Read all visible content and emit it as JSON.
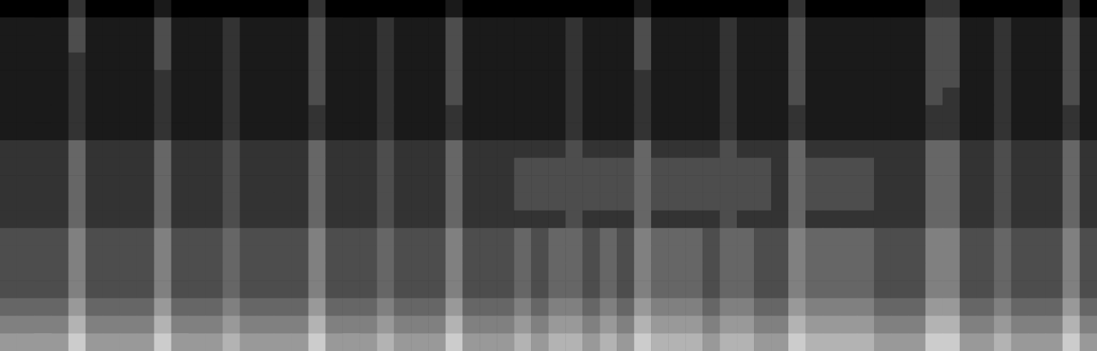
{
  "chart_data": {
    "type": "heatmap",
    "tick_labels": false,
    "grid": false,
    "zlim": [
      0,
      10
    ],
    "cells": [
      [
        0,
        0,
        0,
        0,
        2,
        0,
        0,
        0,
        0,
        1,
        0,
        0,
        0,
        0,
        0,
        0,
        0,
        0,
        2,
        0,
        0,
        0,
        0,
        0,
        0,
        0,
        1,
        0,
        0,
        0,
        0,
        0,
        0,
        0,
        0,
        0,
        0,
        1,
        0,
        0,
        0,
        0,
        0,
        0,
        0,
        0,
        2,
        0,
        0,
        0,
        0,
        0,
        0,
        0,
        2,
        2,
        0,
        0,
        0,
        0,
        0,
        0,
        2,
        0
      ],
      [
        1,
        1,
        1,
        1,
        3,
        1,
        1,
        1,
        1,
        3,
        1,
        1,
        1,
        2,
        1,
        1,
        1,
        1,
        3,
        1,
        1,
        1,
        2,
        1,
        1,
        1,
        3,
        1,
        1,
        1,
        1,
        1,
        1,
        2,
        1,
        1,
        1,
        3,
        1,
        1,
        1,
        1,
        2,
        1,
        1,
        1,
        3,
        1,
        1,
        1,
        1,
        1,
        1,
        1,
        3,
        3,
        1,
        1,
        2,
        1,
        1,
        1,
        3,
        1
      ],
      [
        1,
        1,
        1,
        1,
        3,
        1,
        1,
        1,
        1,
        3,
        1,
        1,
        1,
        2,
        1,
        1,
        1,
        1,
        3,
        1,
        1,
        1,
        2,
        1,
        1,
        1,
        3,
        1,
        1,
        1,
        1,
        1,
        1,
        2,
        1,
        1,
        1,
        3,
        1,
        1,
        1,
        1,
        2,
        1,
        1,
        1,
        3,
        1,
        1,
        1,
        1,
        1,
        1,
        1,
        3,
        3,
        1,
        1,
        2,
        1,
        1,
        1,
        3,
        1
      ],
      [
        1,
        1,
        1,
        1,
        2,
        1,
        1,
        1,
        1,
        3,
        1,
        1,
        1,
        2,
        1,
        1,
        1,
        1,
        3,
        1,
        1,
        1,
        2,
        1,
        1,
        1,
        3,
        1,
        1,
        1,
        1,
        1,
        1,
        2,
        1,
        1,
        1,
        3,
        1,
        1,
        1,
        1,
        2,
        1,
        1,
        1,
        3,
        1,
        1,
        1,
        1,
        1,
        1,
        1,
        3,
        3,
        1,
        1,
        2,
        1,
        1,
        1,
        3,
        1
      ],
      [
        1,
        1,
        1,
        1,
        2,
        1,
        1,
        1,
        1,
        2,
        1,
        1,
        1,
        2,
        1,
        1,
        1,
        1,
        3,
        1,
        1,
        1,
        2,
        1,
        1,
        1,
        3,
        1,
        1,
        1,
        1,
        1,
        1,
        2,
        1,
        1,
        1,
        2,
        1,
        1,
        1,
        1,
        2,
        1,
        1,
        1,
        3,
        1,
        1,
        1,
        1,
        1,
        1,
        1,
        3,
        3,
        1,
        1,
        2,
        1,
        1,
        1,
        3,
        1
      ],
      [
        1,
        1,
        1,
        1,
        2,
        1,
        1,
        1,
        1,
        2,
        1,
        1,
        1,
        2,
        1,
        1,
        1,
        1,
        3,
        1,
        1,
        1,
        2,
        1,
        1,
        1,
        3,
        1,
        1,
        1,
        1,
        1,
        1,
        2,
        1,
        1,
        1,
        2,
        1,
        1,
        1,
        1,
        2,
        1,
        1,
        1,
        3,
        1,
        1,
        1,
        1,
        1,
        1,
        1,
        3,
        2,
        1,
        1,
        2,
        1,
        1,
        1,
        3,
        1
      ],
      [
        1,
        1,
        1,
        1,
        2,
        1,
        1,
        1,
        1,
        2,
        1,
        1,
        1,
        2,
        1,
        1,
        1,
        1,
        2,
        1,
        1,
        1,
        2,
        1,
        1,
        1,
        2,
        1,
        1,
        1,
        1,
        1,
        1,
        2,
        1,
        1,
        1,
        2,
        1,
        1,
        1,
        1,
        2,
        1,
        1,
        1,
        2,
        1,
        1,
        1,
        1,
        1,
        1,
        1,
        2,
        2,
        1,
        1,
        2,
        1,
        1,
        1,
        2,
        1
      ],
      [
        1,
        1,
        1,
        1,
        2,
        1,
        1,
        1,
        1,
        2,
        1,
        1,
        1,
        2,
        1,
        1,
        1,
        1,
        2,
        1,
        1,
        1,
        2,
        1,
        1,
        1,
        2,
        1,
        1,
        1,
        1,
        1,
        1,
        2,
        1,
        1,
        1,
        2,
        1,
        1,
        1,
        1,
        2,
        1,
        1,
        1,
        2,
        1,
        1,
        1,
        1,
        1,
        1,
        1,
        2,
        2,
        1,
        1,
        2,
        1,
        1,
        1,
        2,
        1
      ],
      [
        2,
        2,
        2,
        2,
        4,
        2,
        2,
        2,
        2,
        4,
        2,
        2,
        2,
        3,
        2,
        2,
        2,
        2,
        4,
        2,
        2,
        2,
        3,
        2,
        2,
        2,
        4,
        2,
        2,
        2,
        2,
        2,
        2,
        3,
        2,
        2,
        2,
        4,
        2,
        2,
        2,
        2,
        3,
        2,
        2,
        2,
        4,
        2,
        2,
        2,
        2,
        2,
        2,
        2,
        4,
        4,
        2,
        2,
        3,
        2,
        2,
        2,
        4,
        2
      ],
      [
        2,
        2,
        2,
        2,
        4,
        2,
        2,
        2,
        2,
        4,
        2,
        2,
        2,
        3,
        2,
        2,
        2,
        2,
        4,
        2,
        2,
        2,
        3,
        2,
        2,
        2,
        4,
        2,
        2,
        2,
        3,
        3,
        3,
        3,
        3,
        3,
        3,
        4,
        3,
        3,
        3,
        3,
        3,
        3,
        3,
        2,
        4,
        3,
        3,
        3,
        3,
        2,
        2,
        2,
        4,
        4,
        2,
        2,
        3,
        2,
        2,
        2,
        4,
        2
      ],
      [
        2,
        2,
        2,
        2,
        4,
        2,
        2,
        2,
        2,
        4,
        2,
        2,
        2,
        3,
        2,
        2,
        2,
        2,
        4,
        2,
        2,
        2,
        3,
        2,
        2,
        2,
        4,
        2,
        2,
        2,
        3,
        3,
        3,
        3,
        3,
        3,
        3,
        4,
        3,
        3,
        3,
        3,
        3,
        3,
        3,
        2,
        4,
        3,
        3,
        3,
        3,
        2,
        2,
        2,
        4,
        4,
        2,
        2,
        3,
        2,
        2,
        2,
        4,
        2
      ],
      [
        2,
        2,
        2,
        2,
        4,
        2,
        2,
        2,
        2,
        4,
        2,
        2,
        2,
        3,
        2,
        2,
        2,
        2,
        4,
        2,
        2,
        2,
        3,
        2,
        2,
        2,
        4,
        2,
        2,
        2,
        3,
        3,
        3,
        3,
        3,
        3,
        3,
        4,
        3,
        3,
        3,
        3,
        3,
        3,
        3,
        2,
        4,
        3,
        3,
        3,
        3,
        2,
        2,
        2,
        4,
        4,
        2,
        2,
        3,
        2,
        2,
        2,
        4,
        2
      ],
      [
        2,
        2,
        2,
        2,
        4,
        2,
        2,
        2,
        2,
        4,
        2,
        2,
        2,
        3,
        2,
        2,
        2,
        2,
        4,
        2,
        2,
        2,
        3,
        2,
        2,
        2,
        4,
        2,
        2,
        2,
        2,
        2,
        2,
        3,
        2,
        2,
        2,
        4,
        2,
        2,
        2,
        2,
        3,
        2,
        2,
        2,
        4,
        2,
        2,
        2,
        2,
        2,
        2,
        2,
        4,
        4,
        2,
        2,
        3,
        2,
        2,
        2,
        4,
        2
      ],
      [
        3,
        3,
        3,
        3,
        5,
        3,
        3,
        3,
        3,
        5,
        3,
        3,
        3,
        4,
        3,
        3,
        3,
        3,
        5,
        3,
        3,
        3,
        4,
        3,
        3,
        3,
        5,
        3,
        3,
        3,
        4,
        3,
        4,
        4,
        3,
        4,
        3,
        5,
        4,
        4,
        4,
        3,
        4,
        4,
        3,
        3,
        5,
        4,
        4,
        4,
        4,
        3,
        3,
        3,
        5,
        5,
        3,
        3,
        4,
        3,
        3,
        3,
        5,
        3
      ],
      [
        3,
        3,
        3,
        3,
        5,
        3,
        3,
        3,
        3,
        5,
        3,
        3,
        3,
        4,
        3,
        3,
        3,
        3,
        5,
        3,
        3,
        3,
        4,
        3,
        3,
        3,
        5,
        3,
        3,
        3,
        4,
        3,
        4,
        4,
        3,
        4,
        3,
        5,
        4,
        4,
        4,
        3,
        4,
        4,
        3,
        3,
        5,
        4,
        4,
        4,
        4,
        3,
        3,
        3,
        5,
        5,
        3,
        3,
        4,
        3,
        3,
        3,
        5,
        3
      ],
      [
        3,
        3,
        3,
        3,
        5,
        3,
        3,
        3,
        3,
        5,
        3,
        3,
        3,
        4,
        3,
        3,
        3,
        3,
        5,
        3,
        3,
        3,
        4,
        3,
        3,
        3,
        5,
        3,
        3,
        3,
        4,
        3,
        4,
        4,
        3,
        4,
        3,
        5,
        4,
        4,
        4,
        3,
        4,
        4,
        3,
        3,
        5,
        4,
        4,
        4,
        4,
        3,
        3,
        3,
        5,
        5,
        3,
        3,
        4,
        3,
        3,
        3,
        5,
        3
      ],
      [
        3,
        3,
        3,
        3,
        5,
        3,
        3,
        3,
        3,
        5,
        3,
        3,
        3,
        4,
        3,
        3,
        3,
        3,
        5,
        3,
        3,
        3,
        4,
        3,
        3,
        3,
        5,
        3,
        3,
        3,
        4,
        3,
        4,
        4,
        3,
        4,
        3,
        5,
        4,
        4,
        4,
        3,
        4,
        4,
        3,
        3,
        5,
        4,
        4,
        4,
        4,
        3,
        3,
        3,
        5,
        5,
        3,
        3,
        4,
        3,
        3,
        3,
        5,
        3
      ],
      [
        4,
        4,
        4,
        4,
        6,
        4,
        4,
        4,
        4,
        6,
        4,
        4,
        4,
        5,
        4,
        4,
        4,
        4,
        6,
        4,
        4,
        4,
        5,
        4,
        4,
        4,
        6,
        4,
        4,
        4,
        5,
        4,
        5,
        5,
        4,
        5,
        4,
        6,
        5,
        5,
        5,
        4,
        5,
        5,
        4,
        4,
        6,
        5,
        5,
        5,
        5,
        4,
        4,
        4,
        6,
        6,
        4,
        4,
        5,
        4,
        4,
        4,
        6,
        4
      ],
      [
        5,
        5,
        5,
        5,
        7,
        5,
        5,
        5,
        5,
        7,
        5,
        5,
        5,
        6,
        5,
        5,
        5,
        5,
        7,
        5,
        5,
        5,
        6,
        5,
        5,
        5,
        7,
        5,
        5,
        5,
        6,
        5,
        6,
        6,
        5,
        6,
        5,
        7,
        6,
        6,
        6,
        5,
        6,
        6,
        5,
        5,
        7,
        6,
        6,
        6,
        6,
        5,
        5,
        5,
        7,
        7,
        5,
        5,
        6,
        5,
        5,
        5,
        7,
        5
      ],
      [
        6,
        6,
        6,
        6,
        8,
        6,
        6,
        6,
        6,
        8,
        6,
        6,
        6,
        7,
        6,
        6,
        6,
        6,
        8,
        6,
        6,
        6,
        7,
        6,
        6,
        6,
        8,
        6,
        6,
        6,
        7,
        6,
        7,
        7,
        6,
        7,
        6,
        8,
        7,
        7,
        7,
        6,
        7,
        7,
        6,
        6,
        8,
        7,
        7,
        7,
        7,
        6,
        6,
        6,
        8,
        8,
        6,
        6,
        7,
        6,
        6,
        6,
        8,
        6
      ]
    ]
  }
}
